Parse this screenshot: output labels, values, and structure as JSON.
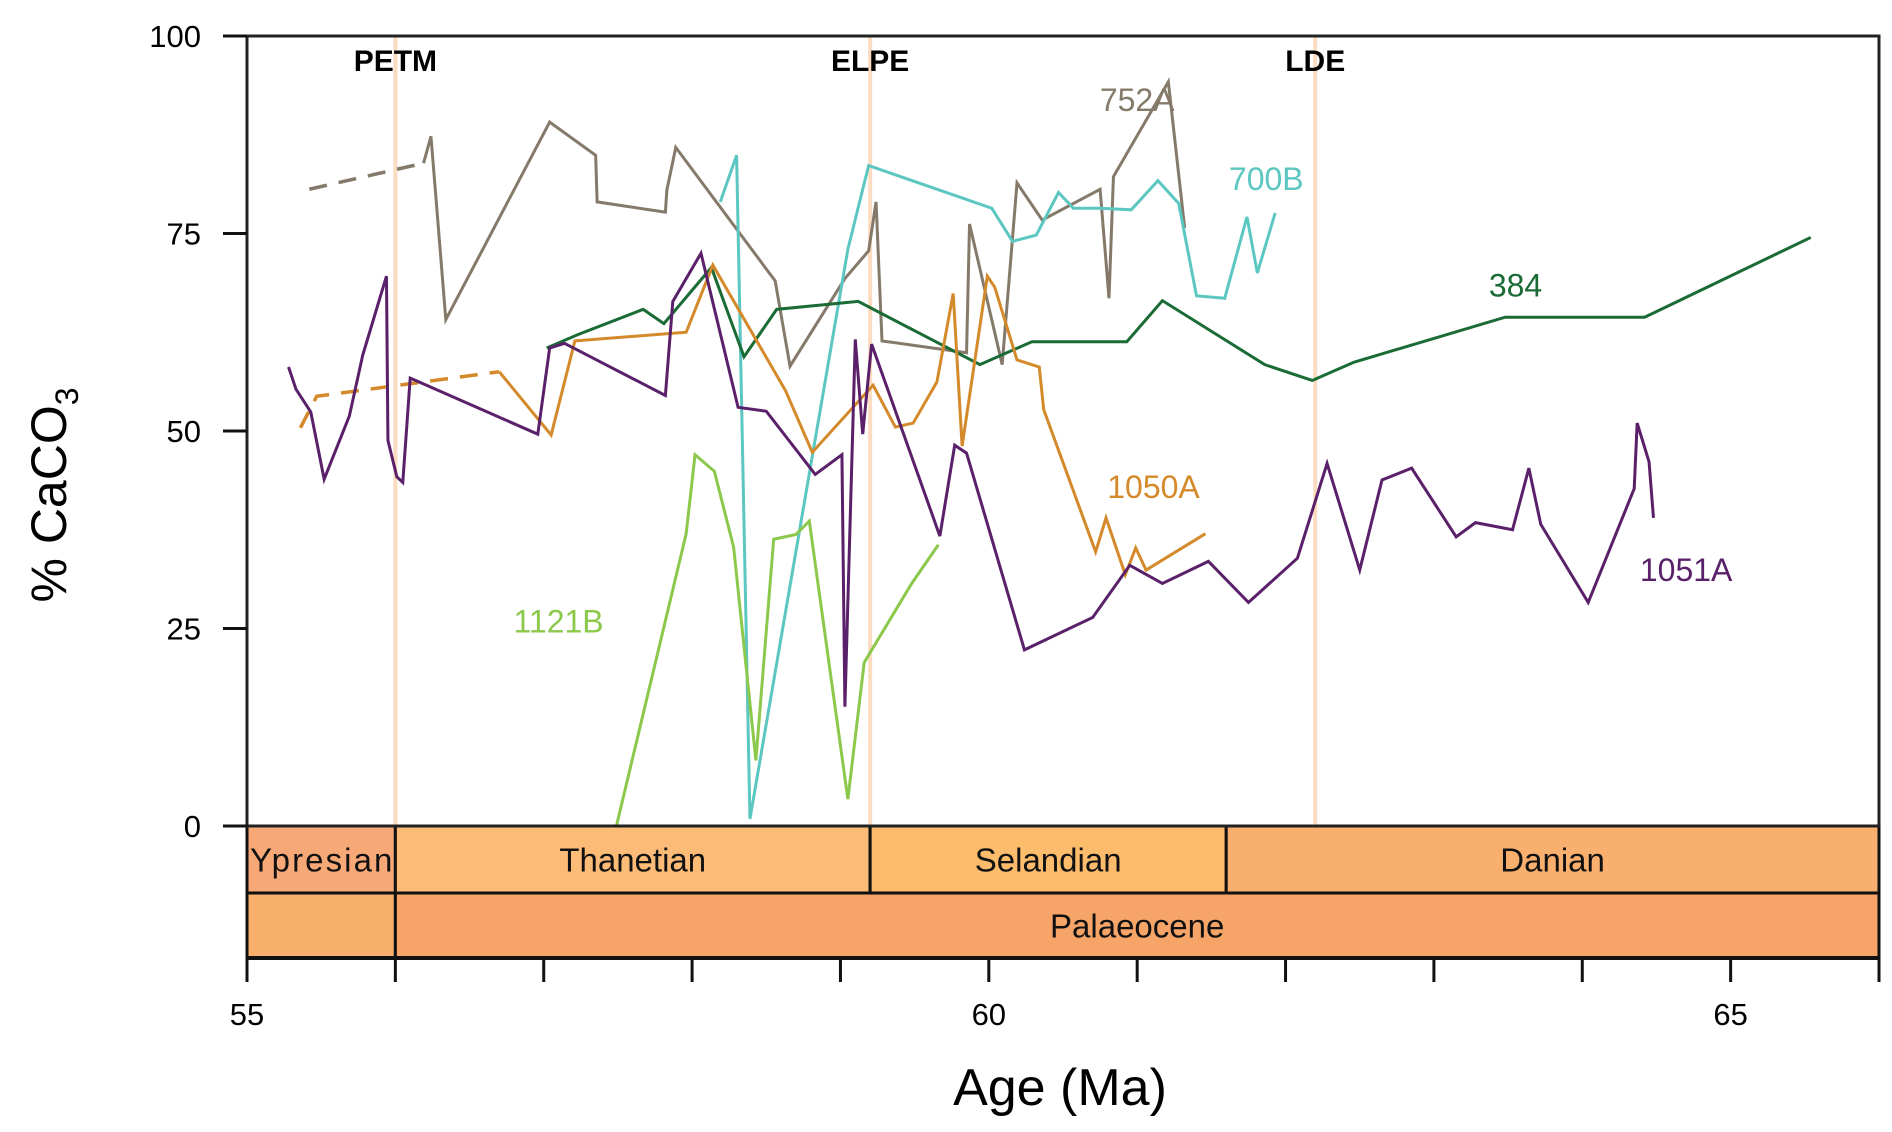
{
  "chart_data": {
    "type": "line",
    "title": "",
    "xlabel": "Age (Ma)",
    "ylabel": "% CaCO",
    "ylabel_subscript": "3",
    "xlim": [
      55,
      66
    ],
    "ylim": [
      0,
      100
    ],
    "xticks": [
      55,
      56,
      57,
      58,
      59,
      60,
      61,
      62,
      63,
      64,
      65,
      66
    ],
    "xtick_labels": [
      {
        "value": 55,
        "label": "55"
      },
      {
        "value": 60,
        "label": "60"
      },
      {
        "value": 65,
        "label": "65"
      }
    ],
    "yticks": [
      {
        "value": 0,
        "label": "0"
      },
      {
        "value": 25,
        "label": "25"
      },
      {
        "value": 50,
        "label": "50"
      },
      {
        "value": 75,
        "label": "75"
      },
      {
        "value": 100,
        "label": "100"
      }
    ],
    "grid": false,
    "events": [
      {
        "label": "PETM",
        "age": 56.0,
        "color": "#fcdcc0"
      },
      {
        "label": "ELPE",
        "age": 59.2,
        "color": "#fcdcc0"
      },
      {
        "label": "LDE",
        "age": 62.2,
        "color": "#fcdcc0"
      }
    ],
    "stages": [
      {
        "label": "Ypresian",
        "from": 55.0,
        "to": 56.0,
        "color": "#f7a877"
      },
      {
        "label": "Thanetian",
        "from": 56.0,
        "to": 59.2,
        "color": "#fcbb76"
      },
      {
        "label": "Selandian",
        "from": 59.2,
        "to": 61.6,
        "color": "#fcbc6c"
      },
      {
        "label": "Danian",
        "from": 61.6,
        "to": 66.0,
        "color": "#f9b06f"
      }
    ],
    "epochs": [
      {
        "label": "",
        "from": 55.0,
        "to": 56.0,
        "color": "#f8b06c"
      },
      {
        "label": "Palaeocene",
        "from": 56.0,
        "to": 66.0,
        "color": "#f6a468"
      }
    ],
    "series": [
      {
        "name": "752A",
        "color": "#857a6a",
        "label_at": [
          61.0,
          90.5
        ],
        "dashed": [
          [
            55.42,
            80.6
          ],
          [
            56.19,
            83.9
          ]
        ],
        "points": [
          [
            56.19,
            83.9
          ],
          [
            56.24,
            87.3
          ],
          [
            56.34,
            64.1
          ],
          [
            57.04,
            89.1
          ],
          [
            57.35,
            84.9
          ],
          [
            57.36,
            79.0
          ],
          [
            57.82,
            77.7
          ],
          [
            57.83,
            80.5
          ],
          [
            57.89,
            85.9
          ],
          [
            58.56,
            69.0
          ],
          [
            58.66,
            58.2
          ],
          [
            59.03,
            69.3
          ],
          [
            59.19,
            72.8
          ],
          [
            59.24,
            79.0
          ],
          [
            59.28,
            61.4
          ],
          [
            59.85,
            59.9
          ],
          [
            59.87,
            76.2
          ],
          [
            60.09,
            58.4
          ],
          [
            60.19,
            81.4
          ],
          [
            60.36,
            76.7
          ],
          [
            60.75,
            80.6
          ],
          [
            60.81,
            66.8
          ],
          [
            60.84,
            82.2
          ],
          [
            61.21,
            94.2
          ],
          [
            61.32,
            75.7
          ]
        ]
      },
      {
        "name": "700B",
        "color": "#5cc6c0",
        "label_at": [
          61.87,
          80.5
        ],
        "dashed": [],
        "points": [
          [
            58.19,
            79.0
          ],
          [
            58.3,
            84.9
          ],
          [
            58.39,
            0.9
          ],
          [
            59.05,
            73.0
          ],
          [
            59.19,
            83.6
          ],
          [
            60.02,
            78.2
          ],
          [
            60.16,
            74.0
          ],
          [
            60.32,
            74.8
          ],
          [
            60.47,
            80.2
          ],
          [
            60.57,
            78.2
          ],
          [
            60.75,
            78.2
          ],
          [
            60.96,
            78.0
          ],
          [
            61.14,
            81.7
          ],
          [
            61.28,
            78.8
          ],
          [
            61.4,
            67.1
          ],
          [
            61.59,
            66.8
          ],
          [
            61.74,
            77.1
          ],
          [
            61.81,
            70.0
          ],
          [
            61.93,
            77.6
          ]
        ]
      },
      {
        "name": "384",
        "color": "#1a6b35",
        "label_at": [
          63.55,
          67.0
        ],
        "dashed": [],
        "points": [
          [
            57.02,
            60.5
          ],
          [
            57.23,
            62.2
          ],
          [
            57.67,
            65.4
          ],
          [
            57.81,
            63.6
          ],
          [
            58.13,
            70.7
          ],
          [
            58.35,
            59.4
          ],
          [
            58.57,
            65.4
          ],
          [
            59.12,
            66.4
          ],
          [
            59.94,
            58.4
          ],
          [
            60.29,
            61.3
          ],
          [
            60.93,
            61.3
          ],
          [
            61.17,
            66.5
          ],
          [
            61.86,
            58.4
          ],
          [
            62.18,
            56.4
          ],
          [
            62.46,
            58.7
          ],
          [
            63.48,
            64.4
          ],
          [
            64.42,
            64.4
          ],
          [
            65.54,
            74.5
          ]
        ]
      },
      {
        "name": "1050A",
        "color": "#d48a2a",
        "label_at": [
          61.11,
          41.5
        ],
        "dashed": [
          [
            55.36,
            50.4
          ],
          [
            55.47,
            54.4
          ],
          [
            56.7,
            57.5
          ]
        ],
        "points": [
          [
            56.7,
            57.5
          ],
          [
            57.05,
            49.5
          ],
          [
            57.21,
            61.4
          ],
          [
            57.96,
            62.5
          ],
          [
            58.14,
            71.0
          ],
          [
            58.63,
            55.1
          ],
          [
            58.81,
            47.3
          ],
          [
            59.22,
            55.8
          ],
          [
            59.37,
            50.5
          ],
          [
            59.49,
            51.0
          ],
          [
            59.65,
            56.2
          ],
          [
            59.76,
            67.4
          ],
          [
            59.82,
            48.1
          ],
          [
            59.99,
            69.6
          ],
          [
            60.04,
            68.2
          ],
          [
            60.19,
            59.0
          ],
          [
            60.34,
            58.1
          ],
          [
            60.37,
            52.7
          ],
          [
            60.72,
            34.7
          ],
          [
            60.79,
            39.0
          ],
          [
            60.92,
            31.8
          ],
          [
            60.99,
            35.2
          ],
          [
            61.06,
            32.4
          ],
          [
            61.46,
            37.0
          ]
        ]
      },
      {
        "name": "1051A",
        "color": "#5a2069",
        "label_at": [
          64.7,
          31.0
        ],
        "dashed": [],
        "points": [
          [
            55.28,
            58.1
          ],
          [
            55.33,
            55.3
          ],
          [
            55.43,
            52.4
          ],
          [
            55.52,
            43.9
          ],
          [
            55.69,
            51.9
          ],
          [
            55.78,
            59.6
          ],
          [
            55.94,
            69.6
          ],
          [
            55.95,
            48.8
          ],
          [
            56.01,
            44.2
          ],
          [
            56.05,
            43.5
          ],
          [
            56.1,
            56.7
          ],
          [
            56.96,
            49.6
          ],
          [
            57.04,
            60.5
          ],
          [
            57.14,
            61.1
          ],
          [
            57.82,
            54.5
          ],
          [
            57.87,
            66.4
          ],
          [
            58.06,
            72.5
          ],
          [
            58.31,
            53.0
          ],
          [
            58.5,
            52.5
          ],
          [
            58.83,
            44.5
          ],
          [
            59.01,
            47.0
          ],
          [
            59.03,
            15.1
          ],
          [
            59.1,
            61.6
          ],
          [
            59.15,
            49.6
          ],
          [
            59.21,
            61.0
          ],
          [
            59.67,
            36.7
          ],
          [
            59.77,
            48.2
          ],
          [
            59.85,
            47.2
          ],
          [
            60.24,
            22.3
          ],
          [
            60.7,
            26.4
          ],
          [
            60.95,
            33.0
          ],
          [
            61.17,
            30.7
          ],
          [
            61.48,
            33.5
          ],
          [
            61.75,
            28.3
          ],
          [
            62.08,
            33.9
          ],
          [
            62.28,
            45.9
          ],
          [
            62.5,
            32.4
          ],
          [
            62.65,
            43.8
          ],
          [
            62.85,
            45.3
          ],
          [
            63.15,
            36.6
          ],
          [
            63.28,
            38.4
          ],
          [
            63.53,
            37.5
          ],
          [
            63.64,
            45.3
          ],
          [
            63.72,
            38.2
          ],
          [
            64.04,
            28.3
          ],
          [
            64.35,
            42.7
          ],
          [
            64.37,
            51.0
          ],
          [
            64.45,
            46.1
          ],
          [
            64.48,
            39.0
          ]
        ]
      },
      {
        "name": "1121B",
        "color": "#8cc84b",
        "label_at": [
          57.1,
          24.5
        ],
        "dashed": [],
        "points": [
          [
            57.49,
            0.0
          ],
          [
            57.96,
            37.0
          ],
          [
            58.02,
            47.0
          ],
          [
            58.15,
            44.9
          ],
          [
            58.28,
            35.3
          ],
          [
            58.43,
            8.3
          ],
          [
            58.55,
            36.3
          ],
          [
            58.7,
            36.9
          ],
          [
            58.79,
            38.6
          ],
          [
            59.05,
            3.4
          ],
          [
            59.16,
            20.7
          ],
          [
            59.48,
            30.7
          ],
          [
            59.66,
            35.6
          ]
        ]
      }
    ]
  }
}
